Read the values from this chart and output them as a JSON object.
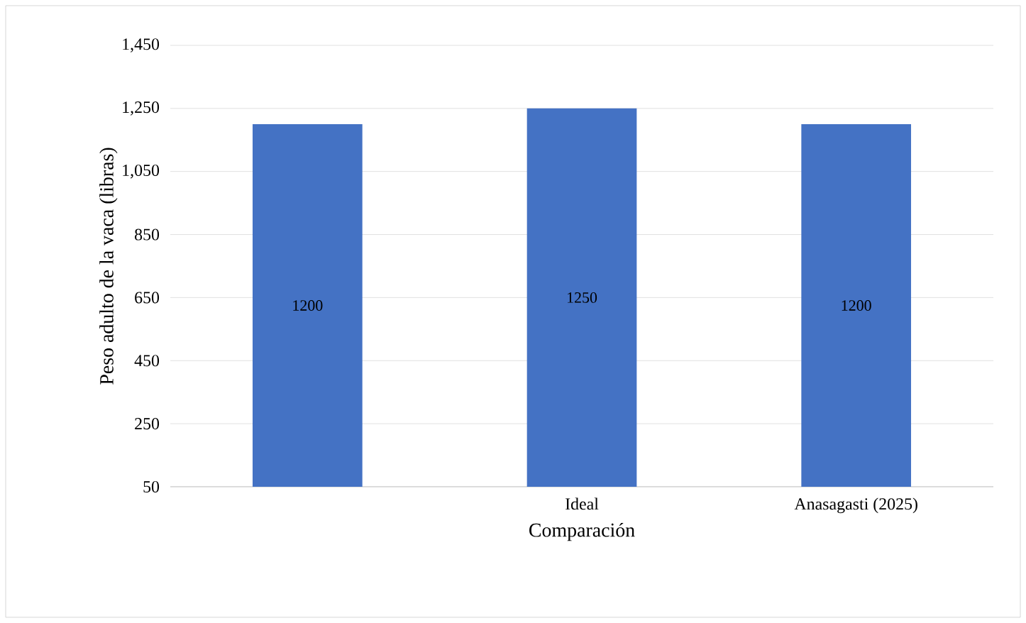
{
  "chart_data": {
    "type": "bar",
    "xlabel": "Comparación",
    "ylabel": "Peso adulto de la vaca (libras)",
    "categories": [
      null,
      "Ideal",
      "Anasagasti (2025)"
    ],
    "values": [
      1200,
      1250,
      1200
    ],
    "color": "#4472c4",
    "ylim": [
      50,
      1450
    ],
    "yticks": [
      50,
      250,
      450,
      650,
      850,
      {
        "value": 1050,
        "label": "1,050"
      },
      {
        "value": 1250,
        "label": "1,250"
      },
      {
        "value": 1450,
        "label": "1,450"
      }
    ],
    "grid": "y",
    "data_labels": true
  }
}
